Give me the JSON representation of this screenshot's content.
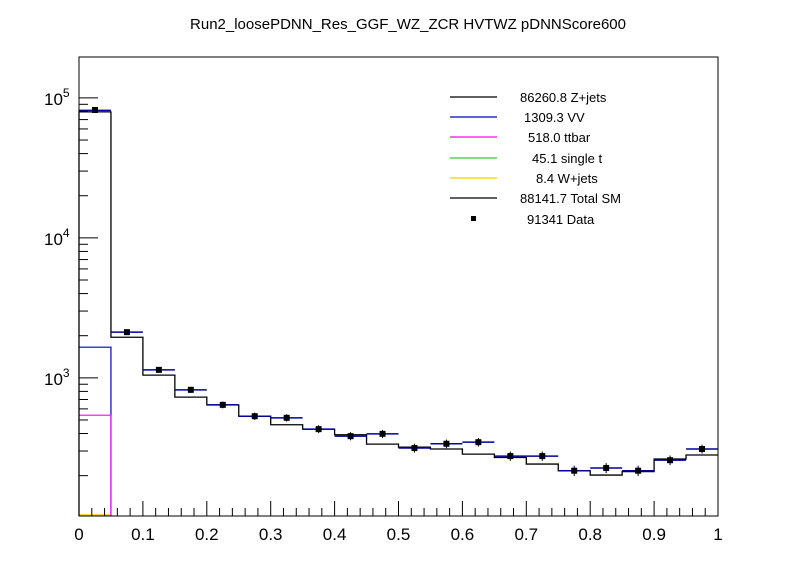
{
  "chart_data": {
    "type": "line",
    "subtype": "stacked-step-histogram",
    "title": "Run2_loosePDNN_Res_GGF_WZ_ZCR HVTWZ  pDNNScore600",
    "xlabel": "",
    "ylabel": "",
    "xlim": [
      0,
      1
    ],
    "ylim": [
      103,
      196000
    ],
    "yscale": "log",
    "grid": false,
    "legend_placement": "top-right",
    "x_ticks": [
      "0",
      "0.1",
      "0.2",
      "0.3",
      "0.4",
      "0.5",
      "0.6",
      "0.7",
      "0.8",
      "0.9",
      "1"
    ],
    "y_ticks": [
      {
        "base": "10",
        "exp": "5",
        "value": 100000
      },
      {
        "base": "10",
        "exp": "4",
        "value": 10000
      },
      {
        "base": "10",
        "exp": "3",
        "value": 1000
      }
    ],
    "bin_edges": [
      0,
      0.05,
      0.1,
      0.15,
      0.2,
      0.25,
      0.3,
      0.35,
      0.4,
      0.45,
      0.5,
      0.55,
      0.6,
      0.65,
      0.7,
      0.75,
      0.8,
      0.85,
      0.9,
      0.95,
      1
    ],
    "series": [
      {
        "name": "Z+jets",
        "color": "#000000",
        "values": [
          79500,
          1950,
          1045,
          728,
          641,
          532,
          462,
          430,
          392,
          336,
          320,
          310,
          285,
          270,
          242,
          217,
          202,
          214,
          263,
          281
        ]
      },
      {
        "name": "VV",
        "color": "#0000cc",
        "values": [
          1655,
          null,
          null,
          null,
          null,
          null,
          null,
          null,
          null,
          null,
          null,
          null,
          null,
          null,
          null,
          null,
          null,
          null,
          null,
          null
        ]
      },
      {
        "name": "ttbar",
        "color": "#ff00ff",
        "values": [
          541,
          null,
          null,
          null,
          null,
          null,
          null,
          null,
          null,
          null,
          null,
          null,
          null,
          null,
          null,
          null,
          null,
          null,
          null,
          null
        ]
      },
      {
        "name": "Total SM",
        "color": "#000099",
        "values": [
          81500,
          2120,
          1140,
          821,
          641,
          532,
          518,
          430,
          383,
          398,
          315,
          338,
          347,
          276,
          276,
          217,
          227,
          217,
          258,
          310
        ]
      },
      {
        "name": "Data",
        "color": "#000000",
        "values": [
          82000,
          2120,
          1140,
          821,
          641,
          532,
          518,
          430,
          383,
          398,
          315,
          338,
          347,
          276,
          276,
          217,
          227,
          217,
          258,
          310
        ]
      }
    ],
    "legend": [
      {
        "label": "86260.8 Z+jets",
        "color": "#000000",
        "style": "line"
      },
      {
        "label": "1309.3 VV",
        "color": "#0000cc",
        "style": "line"
      },
      {
        "label": "518.0 ttbar",
        "color": "#ff00ff",
        "style": "line"
      },
      {
        "label": "45.1 single t",
        "color": "#33cc33",
        "style": "line"
      },
      {
        "label": "8.4 W+jets",
        "color": "#ffcc00",
        "style": "line"
      },
      {
        "label": "88141.7 Total SM",
        "color": "#000000",
        "style": "line"
      },
      {
        "label": "91341 Data",
        "color": "#000000",
        "style": "marker"
      }
    ]
  }
}
